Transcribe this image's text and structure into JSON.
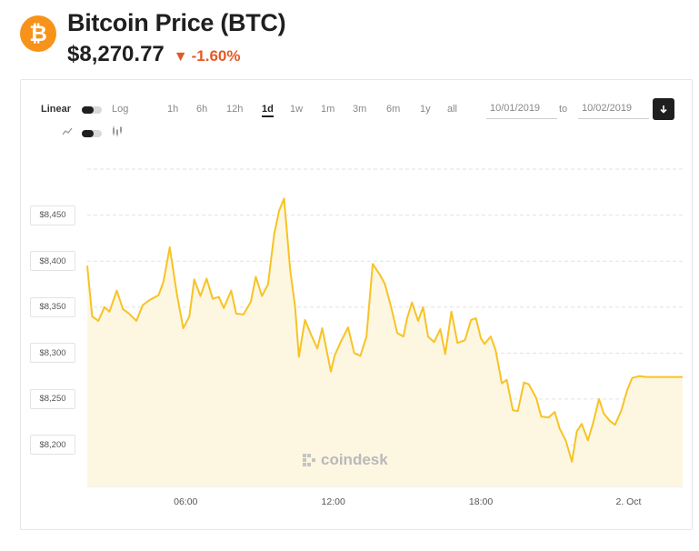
{
  "header": {
    "title": "Bitcoin Price (BTC)",
    "price": "$8,270.77",
    "change_arrow": "▼",
    "change": "-1.60%",
    "logo_glyph": "₿"
  },
  "controls": {
    "scale_linear": "Linear",
    "scale_log": "Log",
    "line_icon": "line-chart-icon",
    "candle_icon": "candlestick-icon",
    "ranges": [
      "1h",
      "6h",
      "12h",
      "1d",
      "1w",
      "1m",
      "3m",
      "6m",
      "1y",
      "all"
    ],
    "active_range": "1d",
    "date_from": "10/01/2019",
    "date_to": "10/02/2019",
    "to_label": "to",
    "download_icon": "download-icon"
  },
  "watermark": "coindesk",
  "colors": {
    "line": "#f7c325",
    "fill": "#fdf6e1",
    "accent": "#f7931a",
    "negative": "#e45a27"
  },
  "chart_data": {
    "type": "area",
    "title": "",
    "xlabel": "",
    "ylabel": "",
    "y_tick_labels": [
      "$8,450",
      "$8,400",
      "$8,350",
      "$8,300",
      "$8,250",
      "$8,200"
    ],
    "y_ticks": [
      8450,
      8400,
      8350,
      8300,
      8250,
      8200
    ],
    "x_tick_labels": [
      "06:00",
      "12:00",
      "18:00",
      "2. Oct"
    ],
    "x_ticks": [
      4,
      10,
      16,
      22
    ],
    "xlim": [
      0,
      24.2
    ],
    "ylim": [
      8155,
      8505
    ],
    "grid": true,
    "series": [
      {
        "x": [
          0.0,
          0.2,
          0.45,
          0.7,
          0.9,
          1.2,
          1.45,
          1.7,
          2.0,
          2.25,
          2.55,
          2.9,
          3.1,
          3.35,
          3.65,
          3.9,
          4.15,
          4.35,
          4.6,
          4.85,
          5.1,
          5.35,
          5.55,
          5.85,
          6.05,
          6.35,
          6.65,
          6.85,
          7.1,
          7.35,
          7.6,
          7.8,
          8.0,
          8.25,
          8.45,
          8.6,
          8.85,
          9.1,
          9.35,
          9.55,
          9.9,
          10.05,
          10.3,
          10.6,
          10.85,
          11.1,
          11.35,
          11.6,
          11.9,
          12.1,
          12.35,
          12.6,
          12.85,
          13.0,
          13.2,
          13.45,
          13.65,
          13.85,
          14.1,
          14.35,
          14.55,
          14.8,
          15.05,
          15.35,
          15.6,
          15.8,
          16.0,
          16.15,
          16.4,
          16.6,
          16.85,
          17.05,
          17.3,
          17.5,
          17.75,
          17.95,
          18.25,
          18.45,
          18.75,
          19.0,
          19.2,
          19.45,
          19.7,
          19.9,
          20.1,
          20.35,
          20.55,
          20.8,
          21.0,
          21.25,
          21.45,
          21.7,
          21.95,
          22.15,
          22.45,
          22.7,
          22.9,
          23.15,
          23.3,
          23.55,
          23.8,
          24.0,
          24.2
        ],
        "y": [
          8395,
          8340,
          8335,
          8350,
          8345,
          8368,
          8348,
          8343,
          8335,
          8352,
          8358,
          8363,
          8378,
          8415,
          8363,
          8327,
          8340,
          8380,
          8362,
          8381,
          8359,
          8361,
          8349,
          8368,
          8343,
          8342,
          8356,
          8383,
          8362,
          8375,
          8430,
          8455,
          8468,
          8390,
          8350,
          8296,
          8336,
          8320,
          8305,
          8327,
          8280,
          8297,
          8312,
          8328,
          8300,
          8297,
          8318,
          8397,
          8385,
          8375,
          8350,
          8322,
          8318,
          8338,
          8355,
          8335,
          8350,
          8318,
          8312,
          8326,
          8299,
          8345,
          8311,
          8314,
          8336,
          8338,
          8316,
          8310,
          8318,
          8303,
          8267,
          8271,
          8238,
          8237,
          8268,
          8266,
          8251,
          8231,
          8230,
          8236,
          8218,
          8205,
          8182,
          8215,
          8223,
          8205,
          8223,
          8250,
          8234,
          8226,
          8222,
          8237,
          8260,
          8273,
          8275,
          8274,
          8274,
          8274,
          8274,
          8274,
          8274,
          8274,
          8274
        ]
      }
    ]
  }
}
